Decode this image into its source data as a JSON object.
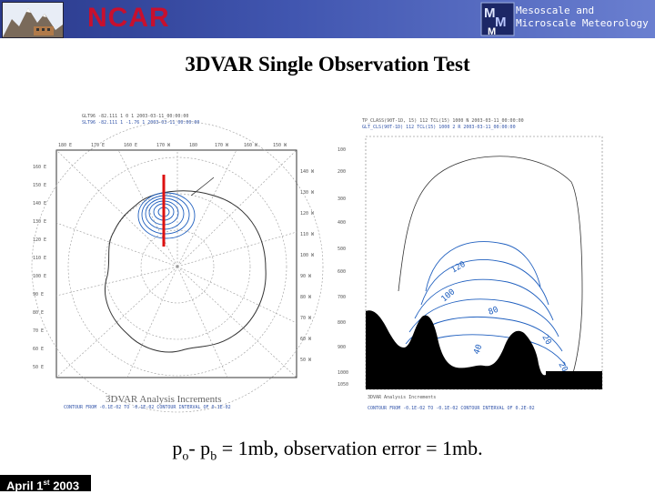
{
  "header": {
    "org_name": "NCAR",
    "subtitle_line1": "Mesoscale and",
    "subtitle_line2": "Microscale Meteorology",
    "colors": {
      "banner": "#2a3a8c",
      "org_name": "#c8102e"
    }
  },
  "slide": {
    "title": "3DVAR Single Observation Test",
    "caption_p": "p",
    "caption_o": "o",
    "caption_mid": "- p",
    "caption_b": "b",
    "caption_rest": " = 1mb, observation error = 1mb."
  },
  "left_plot": {
    "plot_title": "3DVAR Analysis Increments",
    "lat_labels_left": [
      "160 E",
      "150 E",
      "140 E",
      "130 E",
      "120 E",
      "110 E",
      "100 E",
      "90 E",
      "80 E",
      "70 E",
      "60 E",
      "50 E"
    ],
    "lat_labels_right": [
      "140 W",
      "130 W",
      "120 W",
      "110 W",
      "100 W",
      "90 W",
      "80 W",
      "70 W",
      "60 W",
      "50 W"
    ],
    "top_labels": [
      "180 E",
      "170 E",
      "160 E",
      "170 W",
      "180",
      "170 W",
      "160 W",
      "150 W"
    ]
  },
  "right_plot": {
    "plot_title": "3DVAR Analysis Increments",
    "pressure_levels": [
      "100",
      "200",
      "300",
      "400",
      "500",
      "600",
      "700",
      "800",
      "900",
      "1000",
      "1050"
    ],
    "contour_labels": [
      "120",
      "100",
      "80",
      "60",
      "40",
      "20",
      "20"
    ]
  },
  "footer": {
    "date_prefix": "April 1",
    "date_suffix": "st",
    "date_year": " 2003"
  }
}
